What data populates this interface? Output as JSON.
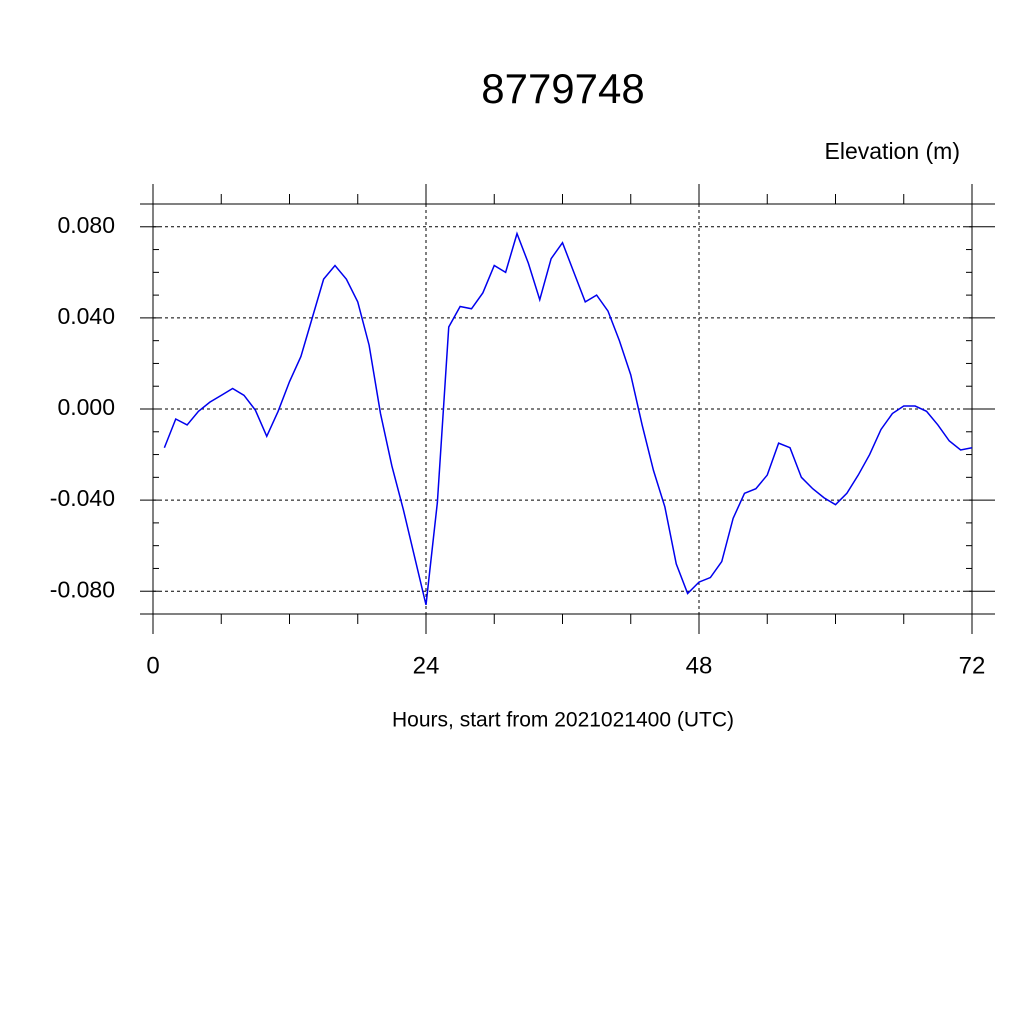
{
  "chart_data": {
    "type": "line",
    "title": "8779748",
    "y_axis_label": "Elevation (m)",
    "x_axis_label": "Hours, start from 2021021400 (UTC)",
    "x": [
      1,
      2,
      3,
      4,
      5,
      6,
      7,
      8,
      9,
      10,
      11,
      12,
      13,
      14,
      15,
      16,
      17,
      18,
      19,
      20,
      21,
      22,
      23,
      24,
      25,
      26,
      27,
      28,
      29,
      30,
      31,
      32,
      33,
      34,
      35,
      36,
      37,
      38,
      39,
      40,
      41,
      42,
      43,
      44,
      45,
      46,
      47,
      48,
      49,
      50,
      51,
      52,
      53,
      54,
      55,
      56,
      57,
      58,
      59,
      60,
      61,
      62,
      63,
      64,
      65,
      66,
      67,
      68,
      69,
      70,
      71,
      72
    ],
    "series": [
      {
        "name": "Elevation",
        "color": "#0000ee",
        "values": [
          -0.017,
          -0.0044,
          -0.007,
          -0.001,
          0.003,
          0.006,
          0.009,
          0.006,
          -0.0005,
          -0.012,
          -0.001,
          0.012,
          0.023,
          0.04,
          0.057,
          0.063,
          0.057,
          0.047,
          0.028,
          -0.002,
          -0.025,
          -0.044,
          -0.065,
          -0.086,
          -0.041,
          0.036,
          0.045,
          0.044,
          0.051,
          0.063,
          0.06,
          0.077,
          0.064,
          0.048,
          0.066,
          0.073,
          0.06,
          0.047,
          0.05,
          0.043,
          0.03,
          0.015,
          -0.007,
          -0.027,
          -0.043,
          -0.068,
          -0.081,
          -0.076,
          -0.074,
          -0.067,
          -0.048,
          -0.037,
          -0.035,
          -0.029,
          -0.015,
          -0.017,
          -0.03,
          -0.035,
          -0.039,
          -0.042,
          -0.037,
          -0.029,
          -0.02,
          -0.009,
          -0.002,
          0.0013,
          0.0013,
          -0.001,
          -0.007,
          -0.014,
          -0.018,
          -0.017
        ]
      }
    ],
    "xlim": [
      0,
      72
    ],
    "xticks": [
      0,
      24,
      48,
      72
    ],
    "ylim": [
      -0.09,
      0.09
    ],
    "yticks": [
      {
        "value": -0.08,
        "label": "-0.080"
      },
      {
        "value": -0.04,
        "label": "-0.040"
      },
      {
        "value": 0,
        "label": "0.000"
      },
      {
        "value": 0.04,
        "label": "0.040"
      },
      {
        "value": 0.08,
        "label": "0.080"
      }
    ],
    "grid": true
  }
}
